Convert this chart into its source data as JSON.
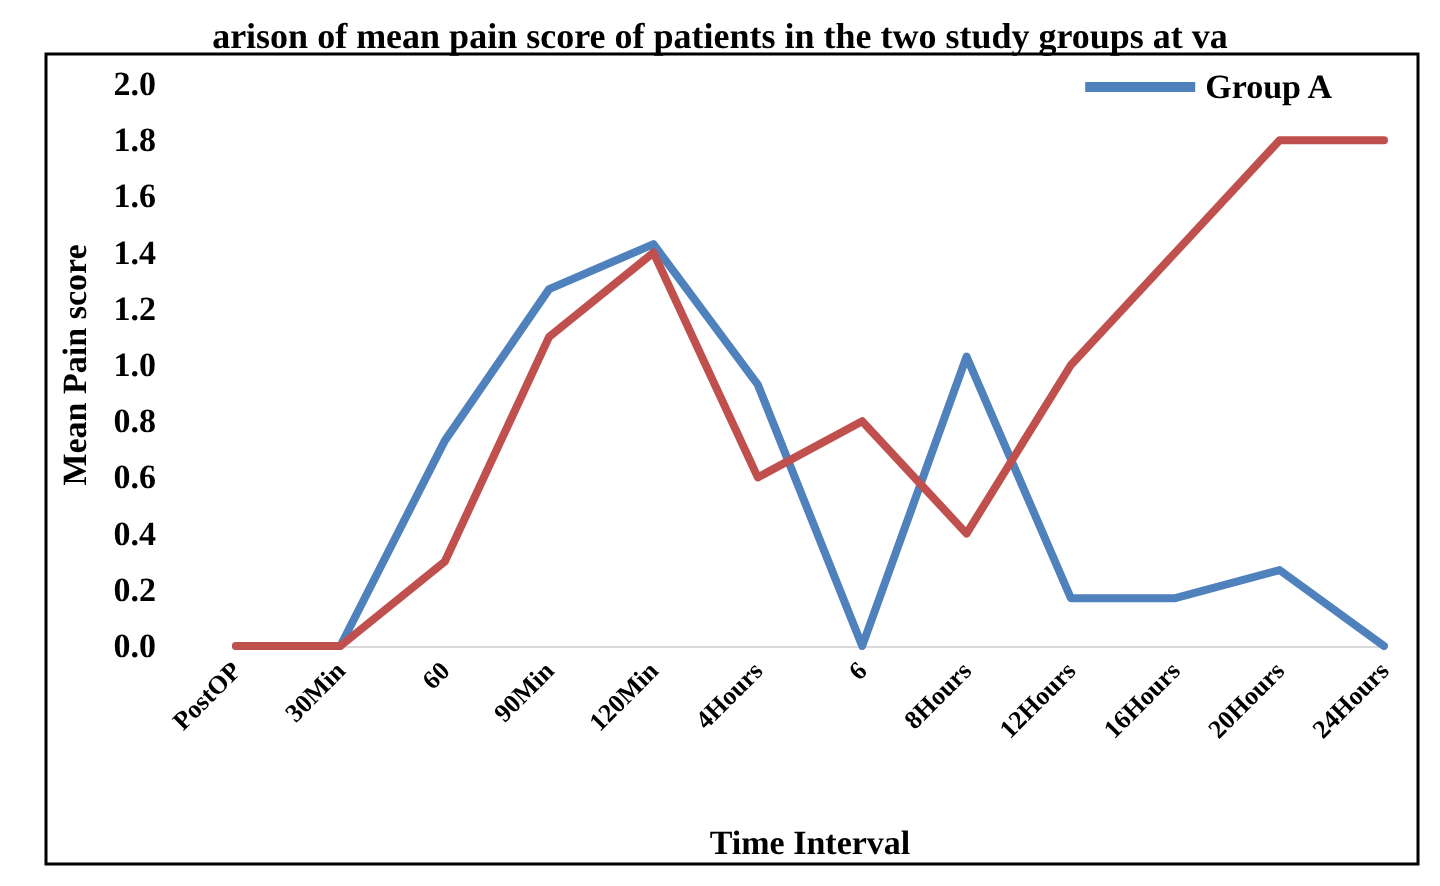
{
  "chart_data": {
    "type": "line",
    "title": "arison of mean pain score of patients in the two study groups at va",
    "xlabel": "Time Interval",
    "ylabel": "Mean Pain score",
    "categories": [
      "PostOP",
      "30Min",
      "60",
      "90Min",
      "120Min",
      "4Hours",
      "6",
      "8Hours",
      "12Hours",
      "16Hours",
      "20Hours",
      "24Hours"
    ],
    "series": [
      {
        "name": "Group A",
        "color": "#4f81bd",
        "values": [
          0,
          0,
          0.73,
          1.27,
          1.43,
          0.93,
          0,
          1.03,
          0.17,
          0.17,
          0.27,
          0
        ]
      },
      {
        "color": "#c0504d",
        "values": [
          0,
          0,
          0.3,
          1.1,
          1.4,
          0.6,
          0.8,
          0.4,
          1.0,
          1.4,
          1.8,
          1.8
        ]
      }
    ],
    "ylim": [
      0,
      2
    ],
    "yticks": [
      {
        "value": 0,
        "label": "0.0"
      },
      0.2,
      0.4,
      0.6,
      0.8,
      {
        "value": 1,
        "label": "1.0"
      },
      1.2,
      1.4,
      1.6,
      1.8,
      {
        "value": 2,
        "label": "2.0"
      }
    ],
    "grid": false,
    "legend": "top right",
    "marker": "none",
    "line_style": "solid"
  }
}
